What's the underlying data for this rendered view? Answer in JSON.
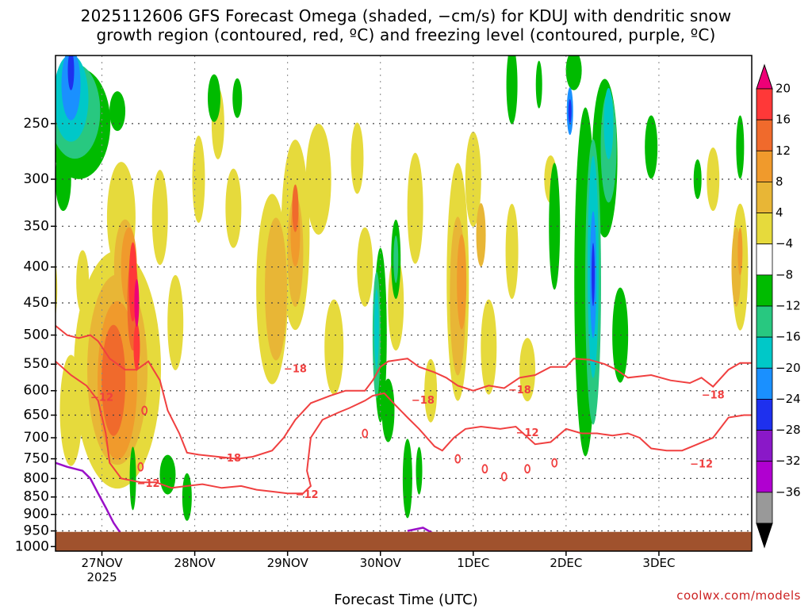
{
  "chart_data": {
    "type": "heatmap",
    "title_line1": "2025112606 GFS Forecast Omega (shaded, −cm/s) for KDUJ with dendritic snow",
    "title_line2": "growth region (contoured, red, ºC) and freezing level (contoured, purple, ºC)",
    "xlabel": "Forecast Time (UTC)",
    "credit": "coolwx.com/models",
    "y_ticks": [
      "250",
      "300",
      "350",
      "400",
      "450",
      "500",
      "550",
      "600",
      "650",
      "700",
      "750",
      "800",
      "850",
      "900",
      "950",
      "1000"
    ],
    "y_tick_values": [
      250,
      300,
      350,
      400,
      450,
      500,
      550,
      600,
      650,
      700,
      750,
      800,
      850,
      900,
      950,
      1000
    ],
    "x_ticks": [
      "27NOV",
      "28NOV",
      "29NOV",
      "30NOV",
      "1DEC",
      "2DEC",
      "3DEC"
    ],
    "x_tick_values": [
      18,
      42,
      66,
      90,
      114,
      138,
      162
    ],
    "x_sublabel": "2025",
    "x_range": [
      6,
      186
    ],
    "y_range_hPa": [
      200,
      1015
    ],
    "colorbar_labels": [
      "20",
      "16",
      "12",
      "8",
      "4",
      "−4",
      "−8",
      "−12",
      "−16",
      "−20",
      "−24",
      "−28",
      "−32",
      "−36"
    ],
    "colorbar_colors": [
      "#ee0077",
      "#ff3838",
      "#f06a2c",
      "#f09a2c",
      "#e8b636",
      "#e6da3c",
      "#ffffff",
      "#00bb00",
      "#28c880",
      "#00c8c8",
      "#1a90ff",
      "#1e30ee",
      "#8a18c8",
      "#b000d0",
      "#999999",
      "#000000"
    ],
    "contour_label": "−18",
    "contour_label2": "−12",
    "terrain_color": "#a0522d"
  }
}
